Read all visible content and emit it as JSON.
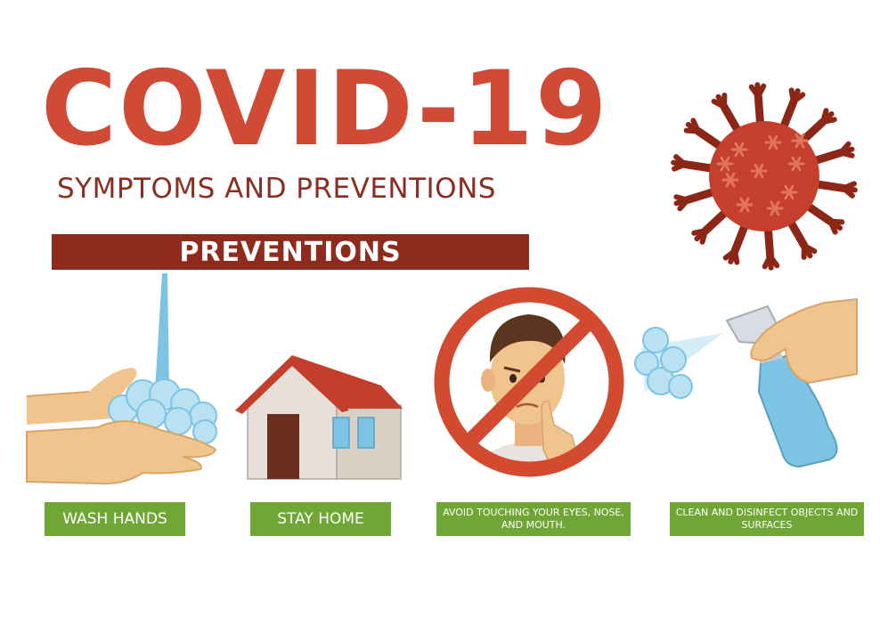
{
  "poster": {
    "title": "COVID-19",
    "subtitle": "SYMPTOMS AND PREVENTIONS",
    "banner": "PREVENTIONS",
    "items": [
      {
        "label": "WASH HANDS",
        "icon": "washing-hands-icon"
      },
      {
        "label": "STAY HOME",
        "icon": "house-icon"
      },
      {
        "label": "AVOID TOUCHING YOUR EYES, NOSE, AND MOUTH.",
        "icon": "no-face-touching-icon"
      },
      {
        "label": "CLEAN AND DISINFECT OBJECTS AND SURFACES",
        "icon": "spray-bottle-icon"
      }
    ],
    "decor_icon": "virus-icon"
  },
  "colors": {
    "title": "#d04a36",
    "subtitle": "#8b2e22",
    "banner_bg": "#8f2b1d",
    "label_bg": "#6fa636",
    "virus": "#c4402c",
    "virus_dark": "#8c2617",
    "prohibition": "#d24a30",
    "water": "#7cc3e4",
    "skin": "#f1c48e",
    "roof": "#c33f2b",
    "wall": "#e8e0d8"
  }
}
